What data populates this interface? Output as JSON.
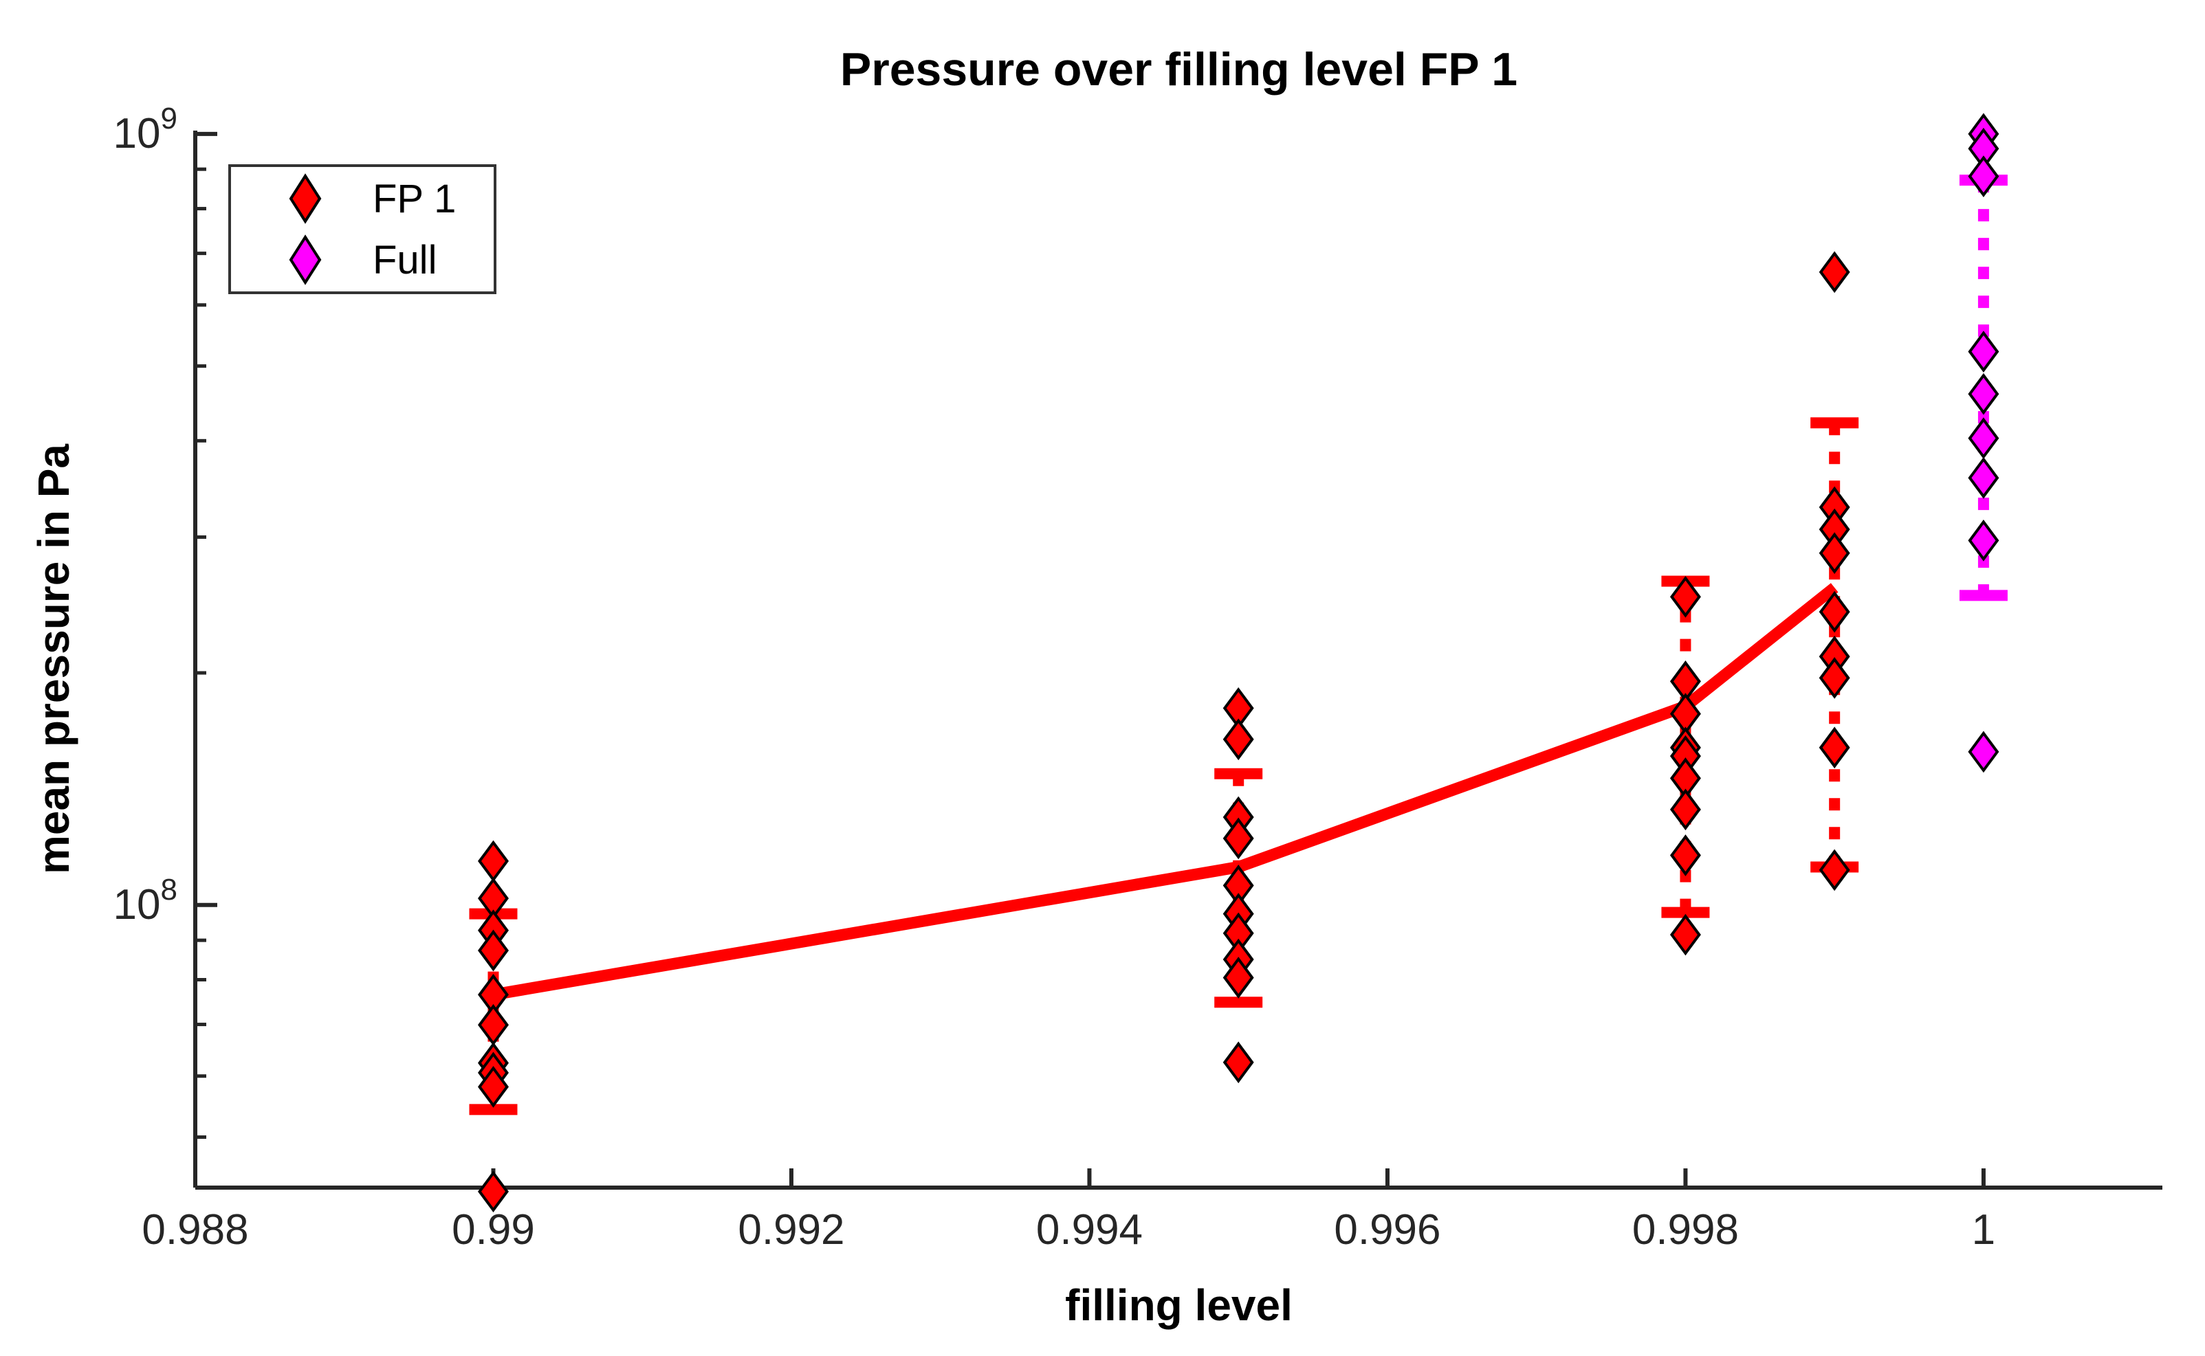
{
  "chart_data": {
    "type": "scatter",
    "title": "Pressure over filling level FP 1",
    "xlabel": "filling level",
    "ylabel": "mean pressure in Pa",
    "x_axis": {
      "lim": [
        0.988,
        1.0012
      ],
      "ticks": [
        0.988,
        0.99,
        0.992,
        0.994,
        0.996,
        0.998,
        1
      ],
      "tick_labels": [
        "0.988",
        "0.99",
        "0.992",
        "0.994",
        "0.996",
        "0.998",
        "1"
      ]
    },
    "y_axis": {
      "scale": "log",
      "lim": [
        43000000.0,
        1010000000.0
      ],
      "major_ticks": [
        {
          "value": 100000000.0,
          "base": "10",
          "exp": "8"
        },
        {
          "value": 1000000000.0,
          "base": "10",
          "exp": "9"
        }
      ],
      "minor_ticks": [
        50000000.0,
        60000000.0,
        70000000.0,
        80000000.0,
        90000000.0,
        200000000.0,
        300000000.0,
        400000000.0,
        500000000.0,
        600000000.0,
        700000000.0,
        800000000.0,
        900000000.0
      ]
    },
    "grid": false,
    "legend": {
      "position": "top-left",
      "items": [
        {
          "label": "FP 1",
          "color": "#ff0000"
        },
        {
          "label": "Full",
          "color": "#ff00ff"
        }
      ]
    },
    "series": [
      {
        "name": "FP 1",
        "color": "#ff0000",
        "marker": "diamond",
        "points": [
          [
            0.99,
            114000000.0
          ],
          [
            0.99,
            102000000.0
          ],
          [
            0.99,
            92700000.0
          ],
          [
            0.99,
            87300000.0
          ],
          [
            0.99,
            76500000.0
          ],
          [
            0.99,
            69900000.0
          ],
          [
            0.99,
            62400000.0
          ],
          [
            0.99,
            60600000.0
          ],
          [
            0.99,
            58100000.0
          ],
          [
            0.99,
            42500000.0
          ],
          [
            0.995,
            180000000.0
          ],
          [
            0.995,
            164000000.0
          ],
          [
            0.995,
            130000000.0
          ],
          [
            0.995,
            122000000.0
          ],
          [
            0.995,
            106000000.0
          ],
          [
            0.995,
            97400000.0
          ],
          [
            0.995,
            91900000.0
          ],
          [
            0.995,
            85000000.0
          ],
          [
            0.995,
            80500000.0
          ],
          [
            0.995,
            62500000.0
          ],
          [
            0.998,
            251000000.0
          ],
          [
            0.998,
            195000000.0
          ],
          [
            0.998,
            177000000.0
          ],
          [
            0.998,
            160000000.0
          ],
          [
            0.998,
            156000000.0
          ],
          [
            0.998,
            146000000.0
          ],
          [
            0.998,
            133000000.0
          ],
          [
            0.998,
            116000000.0
          ],
          [
            0.998,
            91500000.0
          ],
          [
            0.999,
            662000000.0
          ],
          [
            0.999,
            328000000.0
          ],
          [
            0.999,
            307000000.0
          ],
          [
            0.999,
            286000000.0
          ],
          [
            0.999,
            240000000.0
          ],
          [
            0.999,
            210000000.0
          ],
          [
            0.999,
            197000000.0
          ],
          [
            0.999,
            160000000.0
          ],
          [
            0.999,
            111000000.0
          ]
        ]
      },
      {
        "name": "Full",
        "color": "#ff00ff",
        "marker": "diamond",
        "points": [
          [
            1,
            1000000000.0
          ],
          [
            1,
            957000000.0
          ],
          [
            1,
            881000000.0
          ],
          [
            1,
            522000000.0
          ],
          [
            1,
            460000000.0
          ],
          [
            1,
            403000000.0
          ],
          [
            1,
            358000000.0
          ],
          [
            1,
            297000000.0
          ],
          [
            1,
            158000000.0
          ]
        ]
      }
    ],
    "error_bars": [
      {
        "series": "FP 1",
        "x": 0.99,
        "mean": 76500000.0,
        "low": 54300000.0,
        "high": 97400000.0,
        "color": "#ff0000"
      },
      {
        "series": "FP 1",
        "x": 0.995,
        "mean": 112000000.0,
        "low": 74800000.0,
        "high": 148000000.0,
        "color": "#ff0000"
      },
      {
        "series": "FP 1",
        "x": 0.998,
        "mean": 181000000.0,
        "low": 97800000.0,
        "high": 263000000.0,
        "color": "#ff0000"
      },
      {
        "series": "FP 1",
        "x": 0.999,
        "mean": 258000000.0,
        "low": 112000000.0,
        "high": 422000000.0,
        "color": "#ff0000"
      },
      {
        "series": "Full",
        "x": 1,
        "mean": 468000000.0,
        "low": 252000000.0,
        "high": 871000000.0,
        "color": "#ff00ff"
      }
    ],
    "trend_line": {
      "series": "FP 1",
      "color": "#ff0000",
      "points": [
        [
          0.99,
          76500000.0
        ],
        [
          0.995,
          112000000.0
        ],
        [
          0.998,
          181000000.0
        ],
        [
          0.999,
          258000000.0
        ]
      ]
    }
  },
  "style": {
    "marker_edge": "#000000",
    "axis_color": "#262626",
    "tick_label_color": "#262626",
    "background": "#ffffff"
  }
}
